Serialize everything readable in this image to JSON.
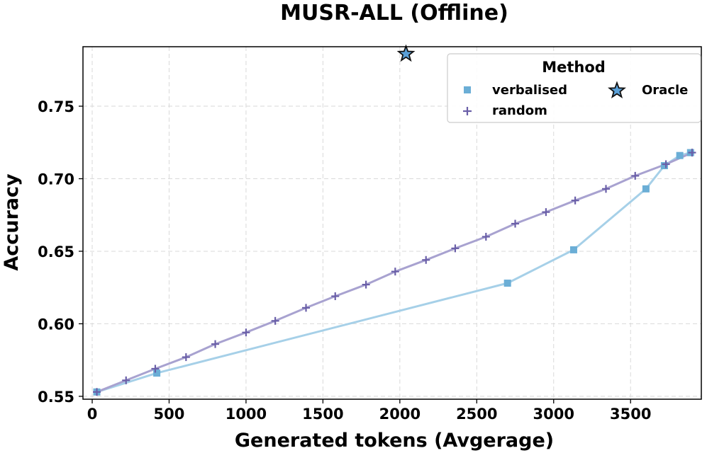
{
  "chart_data": {
    "type": "line",
    "title": "MUSR-ALL (Offline)",
    "xlabel": "Generated tokens (Avgerage)",
    "ylabel": "Accuracy",
    "xlim": [
      -60,
      3960
    ],
    "ylim": [
      0.548,
      0.791
    ],
    "xticks": [
      0,
      500,
      1000,
      1500,
      2000,
      2500,
      3000,
      3500
    ],
    "xtick_labels": [
      "0",
      "500",
      "1000",
      "1500",
      "2000",
      "2500",
      "3000",
      "3500"
    ],
    "yticks": [
      0.55,
      0.6,
      0.65,
      0.7,
      0.75
    ],
    "ytick_labels": [
      "0.55",
      "0.60",
      "0.65",
      "0.70",
      "0.75"
    ],
    "grid": true,
    "legend": {
      "title": "Method",
      "placement": "top-right",
      "entries": [
        "verbalised",
        "random",
        "Oracle"
      ]
    },
    "series": [
      {
        "name": "verbalised",
        "marker": "square",
        "color": "#6baed6",
        "line_color": "#a6d0e8",
        "points": [
          {
            "x": 30,
            "y": 0.553
          },
          {
            "x": 420,
            "y": 0.566
          },
          {
            "x": 2700,
            "y": 0.628
          },
          {
            "x": 3130,
            "y": 0.651
          },
          {
            "x": 3600,
            "y": 0.693
          },
          {
            "x": 3720,
            "y": 0.709
          },
          {
            "x": 3820,
            "y": 0.716
          },
          {
            "x": 3890,
            "y": 0.718
          }
        ]
      },
      {
        "name": "random",
        "marker": "plus",
        "color": "#6a5fa8",
        "line_color": "#a8a2d0",
        "points": [
          {
            "x": 30,
            "y": 0.553
          },
          {
            "x": 220,
            "y": 0.561
          },
          {
            "x": 410,
            "y": 0.569
          },
          {
            "x": 610,
            "y": 0.577
          },
          {
            "x": 800,
            "y": 0.586
          },
          {
            "x": 1000,
            "y": 0.594
          },
          {
            "x": 1190,
            "y": 0.602
          },
          {
            "x": 1390,
            "y": 0.611
          },
          {
            "x": 1580,
            "y": 0.619
          },
          {
            "x": 1780,
            "y": 0.627
          },
          {
            "x": 1970,
            "y": 0.636
          },
          {
            "x": 2170,
            "y": 0.644
          },
          {
            "x": 2360,
            "y": 0.652
          },
          {
            "x": 2560,
            "y": 0.66
          },
          {
            "x": 2750,
            "y": 0.669
          },
          {
            "x": 2950,
            "y": 0.677
          },
          {
            "x": 3140,
            "y": 0.685
          },
          {
            "x": 3340,
            "y": 0.693
          },
          {
            "x": 3530,
            "y": 0.702
          },
          {
            "x": 3730,
            "y": 0.71
          },
          {
            "x": 3900,
            "y": 0.718
          }
        ]
      },
      {
        "name": "Oracle",
        "marker": "star",
        "color": "#5aa0d8",
        "points": [
          {
            "x": 2040,
            "y": 0.786
          }
        ]
      }
    ]
  }
}
